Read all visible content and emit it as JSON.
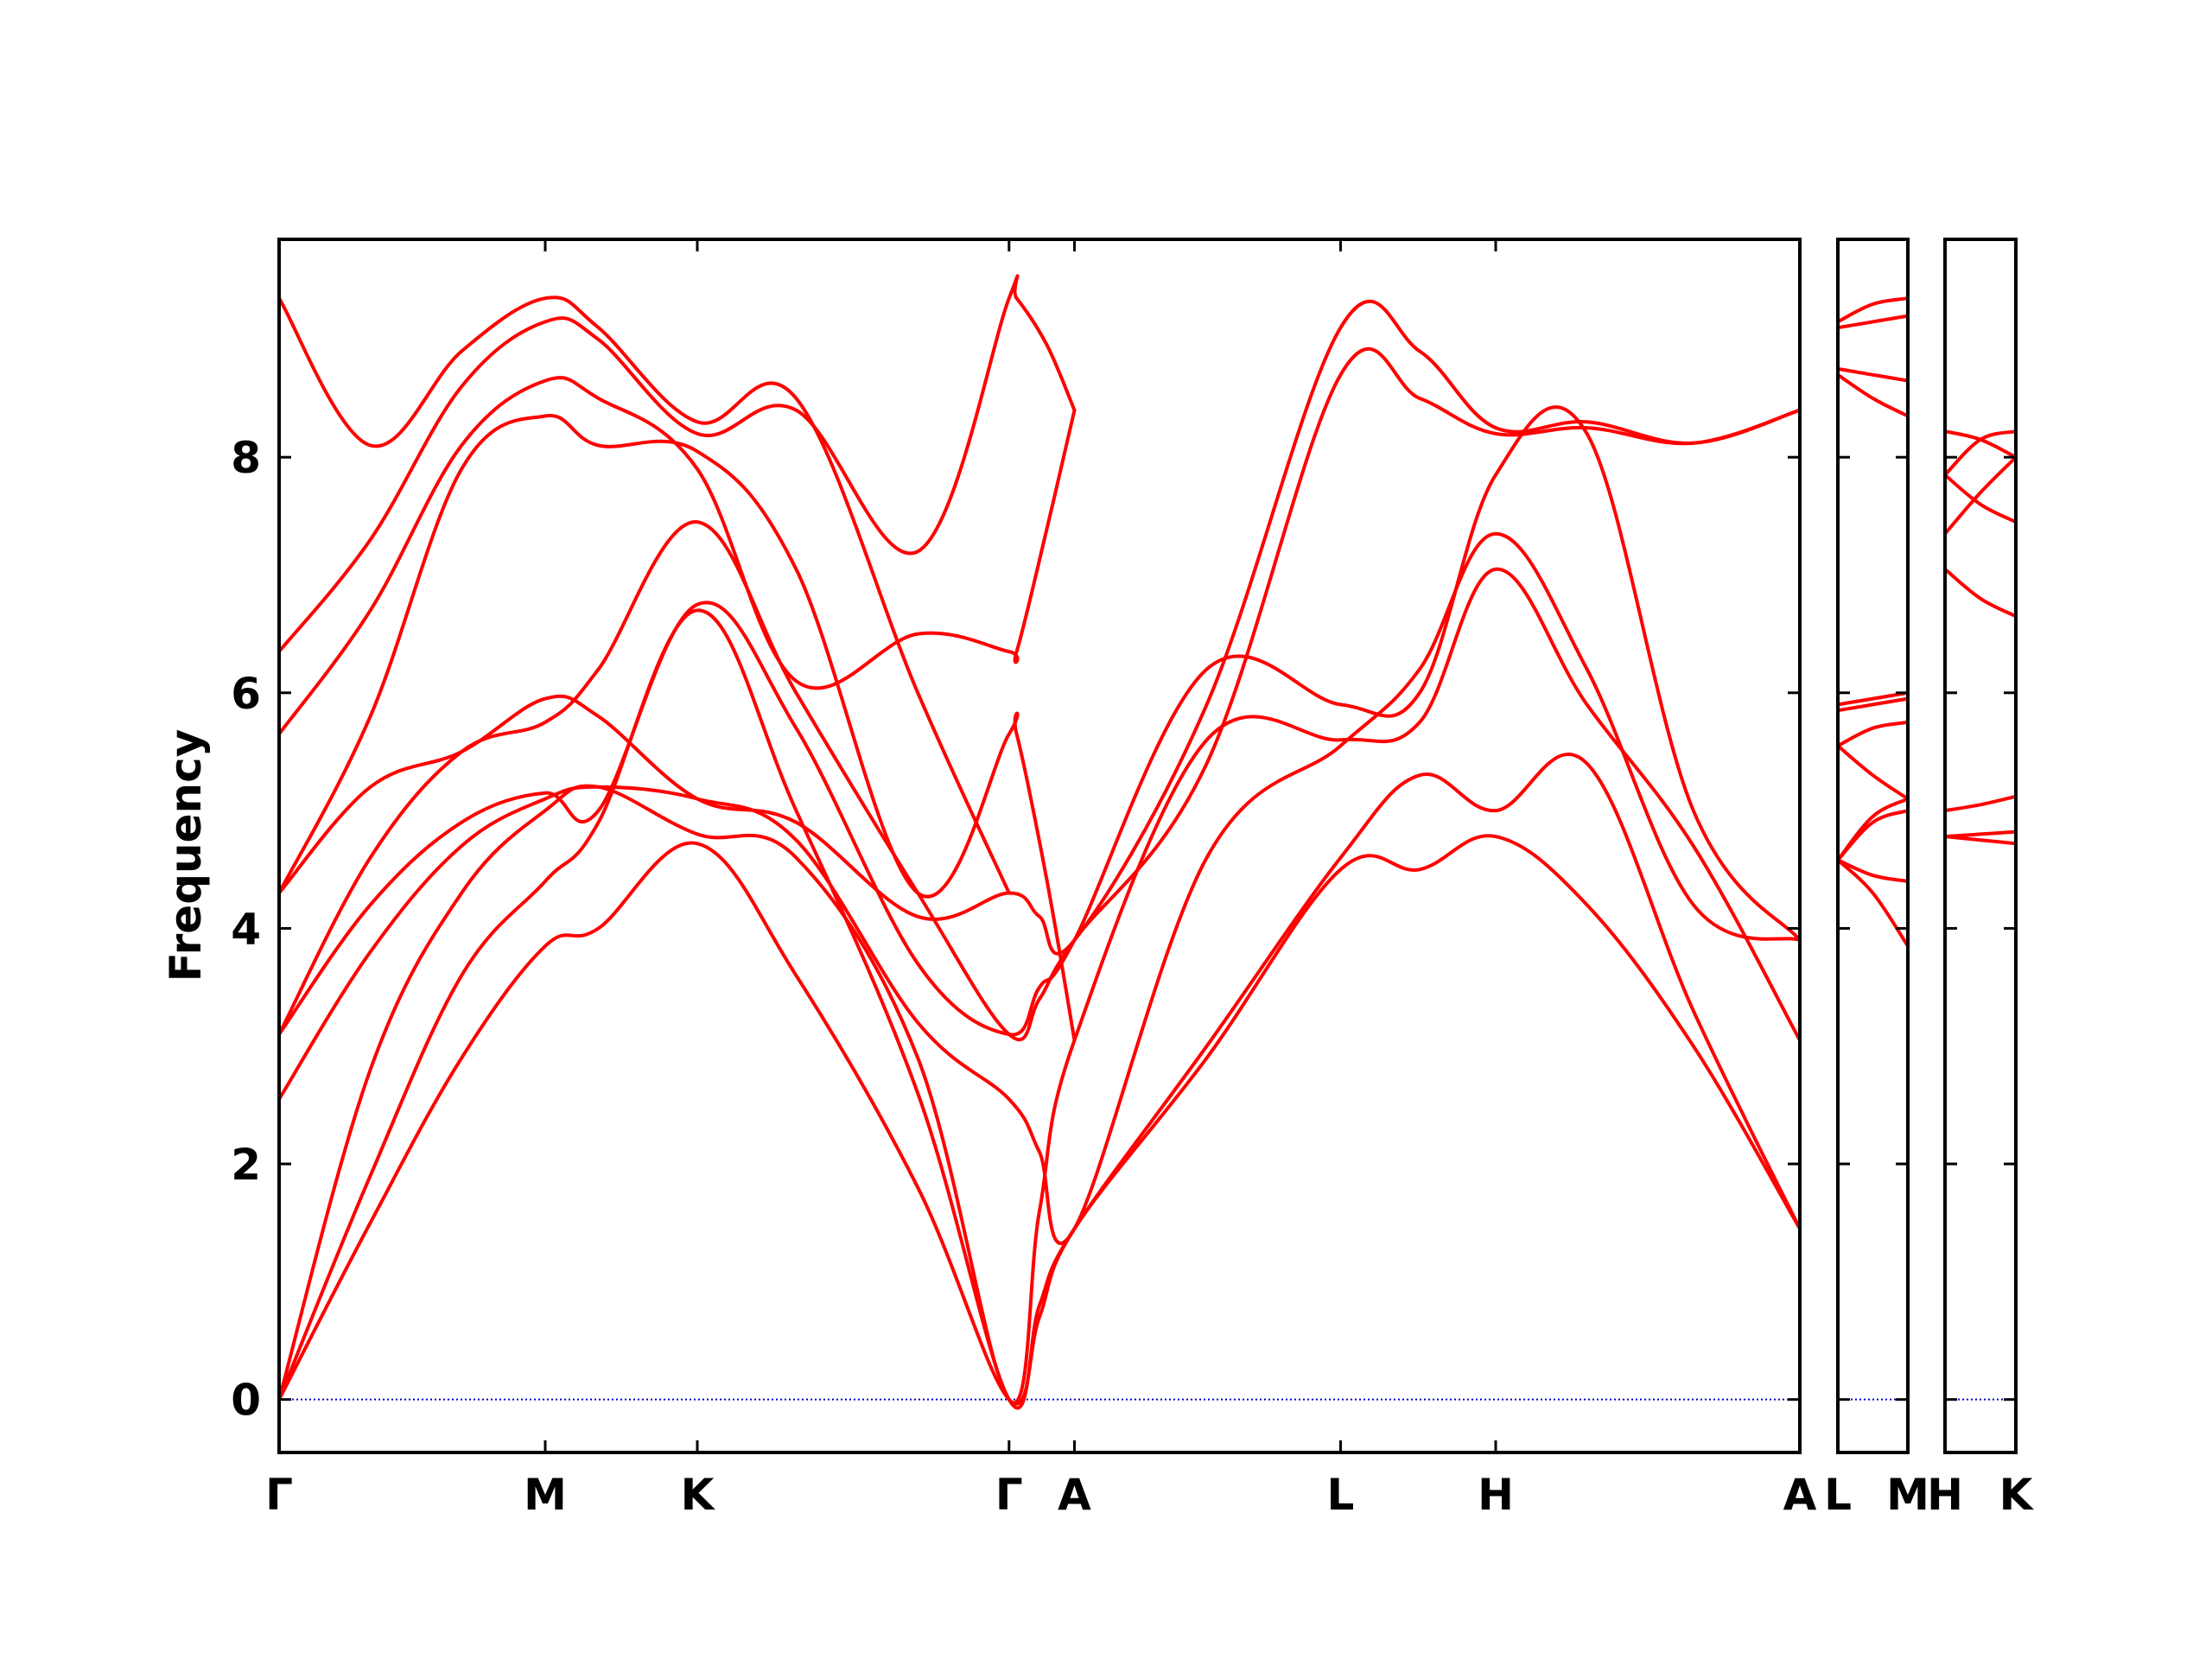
{
  "chart_data": {
    "type": "line",
    "title": "",
    "ylabel": "Frequency",
    "xlabel": "",
    "ylim": [
      -0.45,
      9.85
    ],
    "yticks": [
      0,
      2,
      4,
      6,
      8
    ],
    "grid": false,
    "legend": "none",
    "line_color": "#ff0000",
    "zero_line_color": "#0000cc",
    "panels": [
      {
        "xrange": [
          0,
          10
        ],
        "labels": [
          {
            "x": 0,
            "text": "Γ"
          },
          {
            "x": 1.75,
            "text": "M"
          },
          {
            "x": 2.75,
            "text": "K"
          },
          {
            "x": 4.8,
            "text": "Γ"
          },
          {
            "x": 5.23,
            "text": "A"
          },
          {
            "x": 6.98,
            "text": "L"
          },
          {
            "x": 8,
            "text": "H"
          },
          {
            "x": 10,
            "text": "A"
          }
        ],
        "series": [
          {
            "name": "",
            "x": [
              0,
              0.6,
              1.2,
              1.75,
              2.1,
              2.75,
              3.4,
              4.2,
              4.8,
              5.0,
              5.23,
              6.1,
              6.98,
              7.5,
              8,
              8.6,
              9.3,
              10
            ],
            "y": [
              0,
              1.5,
              2.9,
              3.85,
              4.0,
              4.72,
              3.6,
              1.8,
              0,
              0.7,
              1.45,
              2.9,
              4.5,
              4.5,
              4.78,
              4.2,
              3.0,
              1.45
            ]
          },
          {
            "name": "",
            "x": [
              0,
              0.6,
              1.2,
              1.75,
              2.1,
              2.75,
              3.4,
              4.2,
              4.8,
              5.0,
              5.23,
              6.1,
              6.98,
              7.5,
              8,
              8.6,
              9.3,
              10
            ],
            "y": [
              0,
              1.9,
              3.6,
              4.4,
              4.9,
              6.7,
              5.0,
              2.6,
              0,
              0.8,
              1.45,
              3.0,
              4.6,
              5.3,
              5.0,
              5.4,
              3.3,
              1.45
            ]
          },
          {
            "name": "",
            "x": [
              0,
              0.6,
              1.2,
              1.75,
              2.1,
              2.75,
              3.4,
              4.2,
              4.8,
              5.0,
              5.23,
              6.1,
              6.98,
              7.5,
              8,
              8.6,
              9.3,
              10
            ],
            "y": [
              0,
              2.8,
              4.3,
              5.0,
              5.2,
              4.8,
              4.6,
              2.9,
              0,
              1.6,
              3.05,
              5.6,
              5.6,
              5.75,
              7.05,
              5.9,
              4.7,
              3.05
            ]
          },
          {
            "name": "",
            "x": [
              0,
              0.6,
              1.2,
              1.75,
              2.1,
              2.75,
              3.4,
              4.2,
              4.8,
              5.0,
              5.23,
              6.1,
              6.98,
              7.5,
              8,
              8.6,
              9.3,
              10
            ],
            "y": [
              2.55,
              3.8,
              4.7,
              5.1,
              5.2,
              5.1,
              4.75,
              3.2,
              2.55,
              2.1,
              1.45,
              4.6,
              5.55,
              6.2,
              7.35,
              6.2,
              4.2,
              3.9
            ]
          },
          {
            "name": "",
            "x": [
              0,
              0.6,
              1.2,
              1.75,
              2.1,
              2.75,
              3.4,
              4.2,
              4.8,
              5.0,
              5.23,
              6.1,
              6.98,
              7.5,
              8,
              8.6,
              9.3,
              10
            ],
            "y": [
              3.1,
              4.2,
              4.9,
              5.15,
              5.0,
              6.75,
              5.7,
              3.7,
              3.1,
              3.5,
              3.9,
              6.2,
              5.9,
              6.0,
              7.85,
              8.2,
              5.0,
              3.9
            ]
          },
          {
            "name": "",
            "x": [
              0,
              0.6,
              1.2,
              1.75,
              2.1,
              2.75,
              3.4,
              4.2,
              4.8,
              5.0,
              5.23,
              6.1,
              6.98,
              7.5,
              8,
              8.6,
              9.3,
              10
            ],
            "y": [
              3.1,
              4.6,
              5.5,
              5.75,
              6.2,
              7.45,
              6.0,
              4.3,
              3.1,
              3.4,
              3.9,
              5.4,
              8.7,
              8.5,
              8.2,
              8.25,
              8.12,
              8.4
            ]
          },
          {
            "name": "",
            "x": [
              0,
              0.6,
              1.2,
              1.75,
              2.1,
              2.75,
              3.4,
              4.2,
              4.8,
              5.0,
              5.23,
              6.1,
              6.98,
              7.5,
              8,
              8.6,
              9.3,
              10
            ],
            "y": [
              4.3,
              5.2,
              5.5,
              5.95,
              5.8,
              5.1,
              4.9,
              4.1,
              4.3,
              4.1,
              3.9,
              5.9,
              9.1,
              8.9,
              8.25,
              8.3,
              8.12,
              8.4
            ]
          },
          {
            "name": "",
            "x": [
              0,
              0.6,
              1.2,
              1.75,
              2.1,
              2.75,
              3.4,
              4.2,
              4.8,
              4.85,
              5.05,
              5.23
            ],
            "y": [
              4.3,
              5.8,
              7.9,
              8.35,
              8.1,
              8.05,
              7.05,
              4.3,
              5.65,
              5.65,
              4.4,
              3.05
            ]
          },
          {
            "name": "",
            "x": [
              0,
              0.6,
              1.2,
              1.75,
              2.1,
              2.75,
              3.4,
              4.2,
              4.8,
              4.85,
              5.05,
              5.23
            ],
            "y": [
              5.65,
              6.7,
              8.1,
              8.65,
              8.5,
              7.9,
              6.1,
              6.5,
              6.35,
              6.35,
              7.4,
              8.4
            ]
          },
          {
            "name": "",
            "x": [
              0,
              0.6,
              1.2,
              1.75,
              2.1,
              2.75,
              3.4,
              4.2,
              4.8,
              4.85,
              5.05,
              5.23
            ],
            "y": [
              6.35,
              7.3,
              8.6,
              9.15,
              9.0,
              8.2,
              8.4,
              7.2,
              9.35,
              9.35,
              8.95,
              8.4
            ]
          },
          {
            "name": "",
            "x": [
              0,
              0.6,
              1.2,
              1.75,
              2.1,
              2.75,
              3.4,
              4.2,
              4.8
            ],
            "y": [
              9.35,
              8.1,
              8.9,
              9.35,
              9.1,
              8.3,
              8.5,
              6.0,
              4.3
            ]
          }
        ]
      },
      {
        "xrange": [
          0,
          1
        ],
        "labels": [
          {
            "x": 0,
            "text": "L"
          },
          {
            "x": 1,
            "text": "M"
          }
        ],
        "series": [
          {
            "name": "",
            "x": [
              0,
              0.5,
              1
            ],
            "y": [
              4.58,
              4.45,
              4.4
            ]
          },
          {
            "name": "",
            "x": [
              0,
              0.5,
              1
            ],
            "y": [
              4.58,
              4.3,
              3.85
            ]
          },
          {
            "name": "",
            "x": [
              0,
              0.5,
              1
            ],
            "y": [
              4.58,
              4.9,
              5.0
            ]
          },
          {
            "name": "",
            "x": [
              0,
              0.5,
              1
            ],
            "y": [
              4.58,
              4.95,
              5.1
            ]
          },
          {
            "name": "",
            "x": [
              0,
              0.5,
              1
            ],
            "y": [
              5.55,
              5.7,
              5.75
            ]
          },
          {
            "name": "",
            "x": [
              0,
              0.5,
              1
            ],
            "y": [
              5.55,
              5.3,
              5.1
            ]
          },
          {
            "name": "",
            "x": [
              0,
              0.5,
              1
            ],
            "y": [
              5.85,
              5.9,
              5.95
            ]
          },
          {
            "name": "",
            "x": [
              0,
              0.5,
              1
            ],
            "y": [
              5.9,
              5.95,
              6.0
            ]
          },
          {
            "name": "",
            "x": [
              0,
              0.5,
              1
            ],
            "y": [
              8.7,
              8.5,
              8.35
            ]
          },
          {
            "name": "",
            "x": [
              0,
              0.5,
              1
            ],
            "y": [
              8.75,
              8.7,
              8.65
            ]
          },
          {
            "name": "",
            "x": [
              0,
              0.5,
              1
            ],
            "y": [
              9.1,
              9.15,
              9.2
            ]
          },
          {
            "name": "",
            "x": [
              0,
              0.5,
              1
            ],
            "y": [
              9.15,
              9.3,
              9.35
            ]
          }
        ]
      },
      {
        "xrange": [
          0,
          1
        ],
        "labels": [
          {
            "x": 0,
            "text": "H"
          },
          {
            "x": 1,
            "text": "K"
          }
        ],
        "series": [
          {
            "name": "",
            "x": [
              0,
              0.5,
              1
            ],
            "y": [
              4.78,
              4.75,
              4.72
            ]
          },
          {
            "name": "",
            "x": [
              0,
              0.5,
              1
            ],
            "y": [
              4.78,
              4.8,
              4.82
            ]
          },
          {
            "name": "",
            "x": [
              0,
              0.5,
              1
            ],
            "y": [
              5.0,
              5.05,
              5.12
            ]
          },
          {
            "name": "",
            "x": [
              0,
              0.5,
              1
            ],
            "y": [
              7.05,
              6.8,
              6.65
            ]
          },
          {
            "name": "",
            "x": [
              0,
              0.5,
              1
            ],
            "y": [
              7.35,
              7.7,
              8.0
            ]
          },
          {
            "name": "",
            "x": [
              0,
              0.5,
              1
            ],
            "y": [
              7.85,
              7.6,
              7.45
            ]
          },
          {
            "name": "",
            "x": [
              0,
              0.5,
              1
            ],
            "y": [
              7.85,
              8.15,
              8.22
            ]
          },
          {
            "name": "",
            "x": [
              0,
              0.5,
              1
            ],
            "y": [
              8.22,
              8.15,
              8.0
            ]
          }
        ]
      }
    ]
  }
}
